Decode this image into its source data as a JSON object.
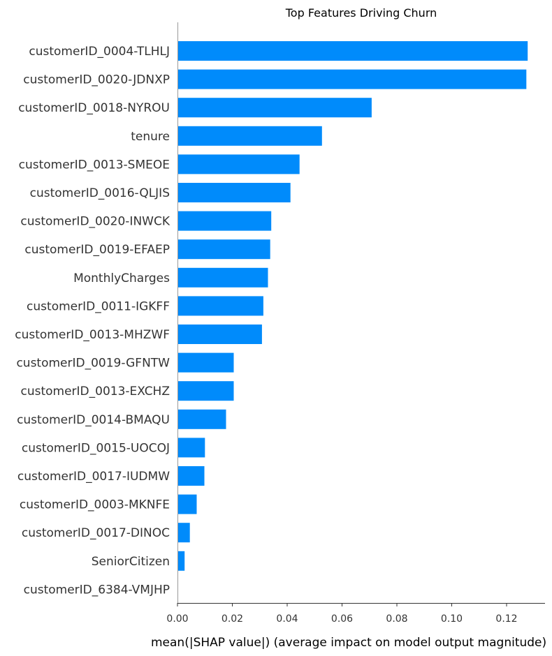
{
  "chart_data": {
    "type": "bar",
    "orientation": "horizontal",
    "title": "Top Features Driving Churn",
    "xlabel": "mean(|SHAP value|) (average impact on model output magnitude)",
    "ylabel": "",
    "xlim": [
      0,
      0.134
    ],
    "xticks": [
      "0.00",
      "0.02",
      "0.04",
      "0.06",
      "0.08",
      "0.10",
      "0.12"
    ],
    "bar_color": "#008bfb",
    "grid": false,
    "categories": [
      "customerID_0004-TLHLJ",
      "customerID_0020-JDNXP",
      "customerID_0018-NYROU",
      "tenure",
      "customerID_0013-SMEOE",
      "customerID_0016-QLJIS",
      "customerID_0020-INWCK",
      "customerID_0019-EFAEP",
      "MonthlyCharges",
      "customerID_0011-IGKFF",
      "customerID_0013-MHZWF",
      "customerID_0019-GFNTW",
      "customerID_0013-EXCHZ",
      "customerID_0014-BMAQU",
      "customerID_0015-UOCOJ",
      "customerID_0017-IUDMW",
      "customerID_0003-MKNFE",
      "customerID_0017-DINOC",
      "SeniorCitizen",
      "customerID_6384-VMJHP"
    ],
    "values": [
      0.1277,
      0.1272,
      0.0708,
      0.0527,
      0.0445,
      0.0412,
      0.0342,
      0.0338,
      0.033,
      0.0313,
      0.0308,
      0.0205,
      0.0205,
      0.0177,
      0.01,
      0.0098,
      0.007,
      0.0045,
      0.0026,
      0.0
    ]
  }
}
